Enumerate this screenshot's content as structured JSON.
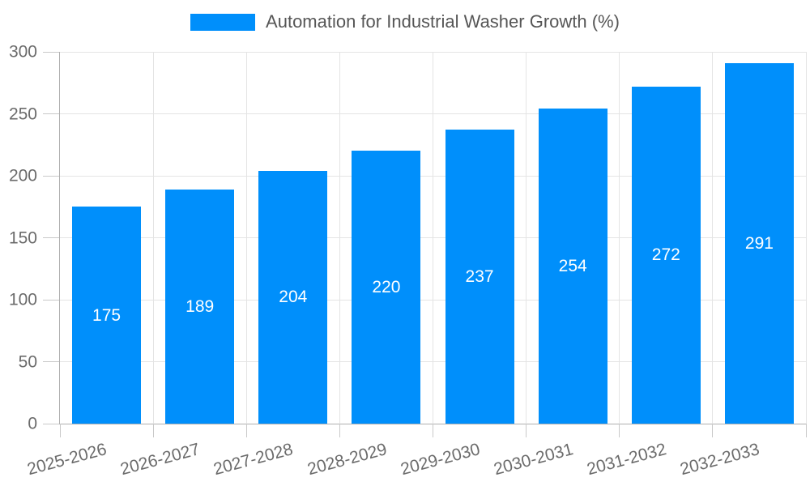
{
  "chart_data": {
    "type": "bar",
    "title": "Automation for Industrial Washer Growth (%)",
    "categories": [
      "2025-2026",
      "2026-2027",
      "2027-2028",
      "2028-2029",
      "2029-2030",
      "2030-2031",
      "2031-2032",
      "2032-2033"
    ],
    "values": [
      175,
      189,
      204,
      220,
      237,
      254,
      272,
      291
    ],
    "xlabel": "",
    "ylabel": "",
    "ylim": [
      0,
      300
    ],
    "yticks": [
      0,
      50,
      100,
      150,
      200,
      250,
      300
    ],
    "grid": true,
    "legend_position": "top",
    "value_labels": "inside-center",
    "colors": {
      "bar": "#008FFB",
      "value_label": "#FFFFFF",
      "title_text": "#565656",
      "axis_text": "#6B6B6B",
      "grid_line": "#E4E4E4",
      "axis_line": "#B0B0B0",
      "tick_mark": "#C9C9C9",
      "background": "#FFFFFF"
    }
  }
}
